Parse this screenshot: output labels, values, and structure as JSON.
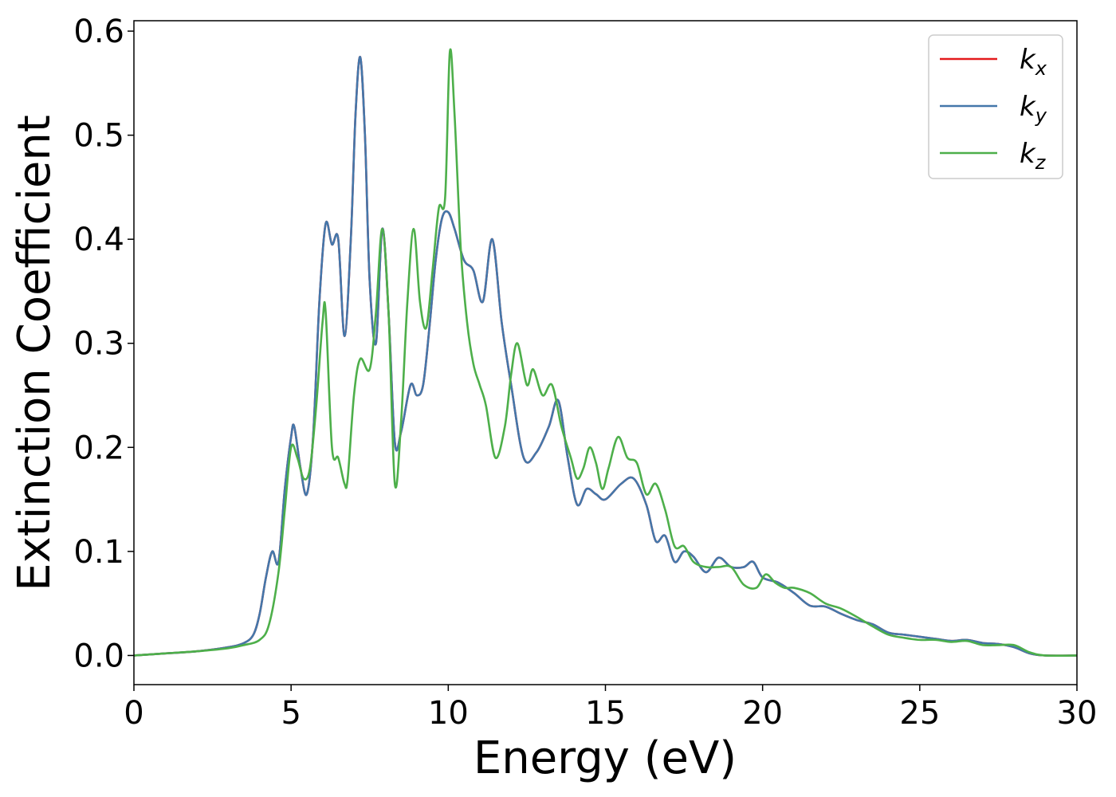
{
  "chart_data": {
    "type": "line",
    "title": "",
    "xlabel": "Energy (eV)",
    "ylabel": "Extinction Coefficient",
    "xlim": [
      0,
      30
    ],
    "ylim": [
      -0.028,
      0.61
    ],
    "xticks": [
      0,
      5,
      10,
      15,
      20,
      25,
      30
    ],
    "yticks": [
      0.0,
      0.1,
      0.2,
      0.3,
      0.4,
      0.5,
      0.6
    ],
    "xtick_labels": [
      "0",
      "5",
      "10",
      "15",
      "20",
      "25",
      "30"
    ],
    "ytick_labels": [
      "0.0",
      "0.1",
      "0.2",
      "0.3",
      "0.4",
      "0.5",
      "0.6"
    ],
    "grid": false,
    "legend_position": "top-right",
    "series": [
      {
        "name": "k",
        "subscript": "x",
        "color": "#e41a1c",
        "x": [
          0,
          1,
          2,
          3,
          3.5,
          3.8,
          4.0,
          4.2,
          4.4,
          4.6,
          4.8,
          5.0,
          5.1,
          5.3,
          5.5,
          5.7,
          5.9,
          6.1,
          6.3,
          6.5,
          6.7,
          6.9,
          7.05,
          7.2,
          7.35,
          7.5,
          7.7,
          7.9,
          8.1,
          8.3,
          8.5,
          8.8,
          9.0,
          9.2,
          9.4,
          9.6,
          9.8,
          10.0,
          10.2,
          10.5,
          10.8,
          11.1,
          11.4,
          11.7,
          12.0,
          12.4,
          12.8,
          13.2,
          13.5,
          13.8,
          14.1,
          14.4,
          14.7,
          15.0,
          15.5,
          15.9,
          16.3,
          16.6,
          16.9,
          17.2,
          17.5,
          17.8,
          18.2,
          18.6,
          19.0,
          19.4,
          19.7,
          20.0,
          20.5,
          21.0,
          21.5,
          22.0,
          22.5,
          23.0,
          23.5,
          24.0,
          24.5,
          25.0,
          25.5,
          26.0,
          26.5,
          27.0,
          27.5,
          28.0,
          28.5,
          29.0,
          30.0
        ],
        "values": [
          0,
          0.002,
          0.004,
          0.008,
          0.012,
          0.02,
          0.04,
          0.075,
          0.1,
          0.09,
          0.16,
          0.21,
          0.22,
          0.18,
          0.155,
          0.21,
          0.34,
          0.415,
          0.395,
          0.4,
          0.307,
          0.4,
          0.52,
          0.575,
          0.5,
          0.36,
          0.3,
          0.41,
          0.33,
          0.205,
          0.215,
          0.26,
          0.25,
          0.26,
          0.315,
          0.38,
          0.42,
          0.426,
          0.41,
          0.38,
          0.37,
          0.34,
          0.4,
          0.32,
          0.26,
          0.19,
          0.195,
          0.22,
          0.245,
          0.19,
          0.145,
          0.16,
          0.155,
          0.15,
          0.165,
          0.17,
          0.145,
          0.11,
          0.115,
          0.09,
          0.1,
          0.095,
          0.08,
          0.094,
          0.085,
          0.085,
          0.09,
          0.075,
          0.07,
          0.06,
          0.048,
          0.047,
          0.04,
          0.034,
          0.03,
          0.022,
          0.02,
          0.018,
          0.016,
          0.014,
          0.015,
          0.012,
          0.011,
          0.008,
          0.002,
          0,
          0
        ]
      },
      {
        "name": "k",
        "subscript": "y",
        "color": "#4477aa",
        "x": [
          0,
          1,
          2,
          3,
          3.5,
          3.8,
          4.0,
          4.2,
          4.4,
          4.6,
          4.8,
          5.0,
          5.1,
          5.3,
          5.5,
          5.7,
          5.9,
          6.1,
          6.3,
          6.5,
          6.7,
          6.9,
          7.05,
          7.2,
          7.35,
          7.5,
          7.7,
          7.9,
          8.1,
          8.3,
          8.5,
          8.8,
          9.0,
          9.2,
          9.4,
          9.6,
          9.8,
          10.0,
          10.2,
          10.5,
          10.8,
          11.1,
          11.4,
          11.7,
          12.0,
          12.4,
          12.8,
          13.2,
          13.5,
          13.8,
          14.1,
          14.4,
          14.7,
          15.0,
          15.5,
          15.9,
          16.3,
          16.6,
          16.9,
          17.2,
          17.5,
          17.8,
          18.2,
          18.6,
          19.0,
          19.4,
          19.7,
          20.0,
          20.5,
          21.0,
          21.5,
          22.0,
          22.5,
          23.0,
          23.5,
          24.0,
          24.5,
          25.0,
          25.5,
          26.0,
          26.5,
          27.0,
          27.5,
          28.0,
          28.5,
          29.0,
          30.0
        ],
        "values": [
          0,
          0.002,
          0.004,
          0.008,
          0.012,
          0.02,
          0.04,
          0.075,
          0.1,
          0.09,
          0.16,
          0.21,
          0.22,
          0.18,
          0.155,
          0.21,
          0.34,
          0.415,
          0.395,
          0.4,
          0.307,
          0.4,
          0.52,
          0.575,
          0.5,
          0.36,
          0.3,
          0.41,
          0.33,
          0.205,
          0.215,
          0.26,
          0.25,
          0.26,
          0.315,
          0.38,
          0.42,
          0.426,
          0.41,
          0.38,
          0.37,
          0.34,
          0.4,
          0.32,
          0.26,
          0.19,
          0.195,
          0.22,
          0.245,
          0.19,
          0.145,
          0.16,
          0.155,
          0.15,
          0.165,
          0.17,
          0.145,
          0.11,
          0.115,
          0.09,
          0.1,
          0.095,
          0.08,
          0.094,
          0.085,
          0.085,
          0.09,
          0.075,
          0.07,
          0.06,
          0.048,
          0.047,
          0.04,
          0.034,
          0.03,
          0.022,
          0.02,
          0.018,
          0.016,
          0.014,
          0.015,
          0.012,
          0.011,
          0.008,
          0.002,
          0,
          0
        ]
      },
      {
        "name": "k",
        "subscript": "z",
        "color": "#4daf4a",
        "x": [
          0,
          1,
          2,
          3,
          3.5,
          4.0,
          4.3,
          4.6,
          4.8,
          5.0,
          5.2,
          5.4,
          5.6,
          5.8,
          6.0,
          6.1,
          6.3,
          6.5,
          6.7,
          6.8,
          7.0,
          7.2,
          7.5,
          7.7,
          7.9,
          8.1,
          8.3,
          8.5,
          8.7,
          8.9,
          9.1,
          9.3,
          9.5,
          9.7,
          9.9,
          10.05,
          10.2,
          10.4,
          10.6,
          10.8,
          11.0,
          11.2,
          11.5,
          11.8,
          12.0,
          12.2,
          12.5,
          12.7,
          13.0,
          13.3,
          13.6,
          13.9,
          14.1,
          14.3,
          14.5,
          14.7,
          14.9,
          15.1,
          15.4,
          15.7,
          16.0,
          16.3,
          16.6,
          16.9,
          17.2,
          17.5,
          17.8,
          18.2,
          18.6,
          19.0,
          19.4,
          19.8,
          20.1,
          20.4,
          20.7,
          21.0,
          21.5,
          22.0,
          22.5,
          23.0,
          23.5,
          24.0,
          24.5,
          25.0,
          25.5,
          26.0,
          26.5,
          27.0,
          27.5,
          28.0,
          28.5,
          29.0,
          30.0
        ],
        "values": [
          0,
          0.002,
          0.004,
          0.007,
          0.01,
          0.015,
          0.03,
          0.08,
          0.14,
          0.2,
          0.19,
          0.17,
          0.18,
          0.24,
          0.32,
          0.33,
          0.2,
          0.19,
          0.165,
          0.17,
          0.25,
          0.285,
          0.275,
          0.33,
          0.41,
          0.33,
          0.165,
          0.225,
          0.34,
          0.41,
          0.34,
          0.315,
          0.37,
          0.43,
          0.44,
          0.58,
          0.52,
          0.39,
          0.32,
          0.28,
          0.26,
          0.24,
          0.19,
          0.22,
          0.27,
          0.3,
          0.26,
          0.275,
          0.25,
          0.26,
          0.22,
          0.19,
          0.17,
          0.18,
          0.2,
          0.185,
          0.16,
          0.18,
          0.21,
          0.19,
          0.185,
          0.155,
          0.165,
          0.14,
          0.105,
          0.105,
          0.09,
          0.085,
          0.085,
          0.085,
          0.068,
          0.065,
          0.078,
          0.07,
          0.065,
          0.065,
          0.06,
          0.05,
          0.045,
          0.037,
          0.028,
          0.02,
          0.017,
          0.015,
          0.015,
          0.013,
          0.014,
          0.01,
          0.01,
          0.01,
          0.003,
          0,
          0
        ]
      }
    ]
  }
}
